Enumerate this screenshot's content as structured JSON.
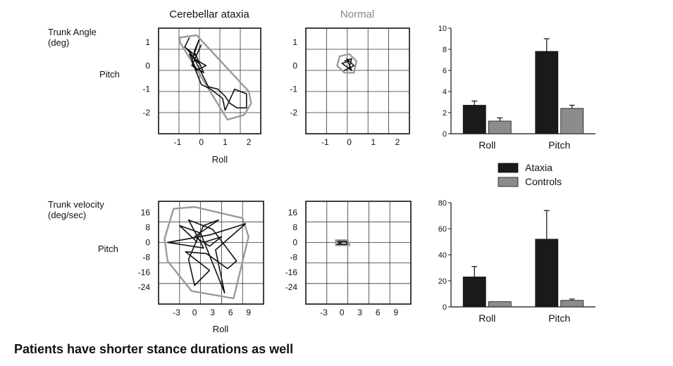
{
  "caption": "Patients have shorter stance durations as well",
  "column_titles": {
    "ataxia": "Cerebellar ataxia",
    "normal": "Normal"
  },
  "colors": {
    "ataxia": "#1a1a1a",
    "controls": "#8c8c8c",
    "hull": "#9a9a9a",
    "trace": "#111111",
    "grid": "#333333"
  },
  "legend": {
    "placement": "right-middle",
    "items": [
      {
        "label": "Ataxia",
        "color": "#1a1a1a"
      },
      {
        "label": "Controls",
        "color": "#8c8c8c"
      }
    ]
  },
  "rows": [
    {
      "ylabel": "Trunk Angle\n(deg)",
      "axis_label_pitch": "Pitch",
      "axis_label_roll": "Roll"
    },
    {
      "ylabel": "Trunk velocity\n(deg/sec)",
      "axis_label_pitch": "Pitch",
      "axis_label_roll": "Roll"
    }
  ],
  "chart_data": [
    {
      "type": "scatter",
      "panel": "trunk-angle-ataxia",
      "xlabel": "Roll",
      "ylabel": "Pitch",
      "xlim": [
        -1.8,
        2.5
      ],
      "ylim": [
        -2.9,
        1.6
      ],
      "xticks": [
        -1,
        0,
        1,
        2
      ],
      "yticks": [
        1,
        0,
        -1,
        -2
      ],
      "grid": true,
      "hull": [
        [
          -0.9,
          1.2
        ],
        [
          -0.2,
          1.3
        ],
        [
          2.0,
          -1.1
        ],
        [
          2.1,
          -1.6
        ],
        [
          1.8,
          -2.1
        ],
        [
          1.1,
          -2.3
        ],
        [
          -0.9,
          1.0
        ]
      ],
      "trace": [
        [
          -0.5,
          1.2
        ],
        [
          -0.7,
          0.8
        ],
        [
          -0.2,
          0.4
        ],
        [
          -0.6,
          0.7
        ],
        [
          -0.1,
          0.1
        ],
        [
          -0.5,
          0.5
        ],
        [
          -0.2,
          -0.2
        ],
        [
          0.2,
          0.0
        ],
        [
          -0.3,
          0.3
        ],
        [
          0.3,
          -0.9
        ],
        [
          0.7,
          -1.0
        ],
        [
          1.0,
          -1.3
        ],
        [
          1.2,
          -1.6
        ],
        [
          1.5,
          -1.8
        ],
        [
          1.9,
          -1.8
        ],
        [
          1.9,
          -1.2
        ],
        [
          1.4,
          -1.0
        ],
        [
          1.0,
          -1.9
        ],
        [
          0.9,
          -1.4
        ],
        [
          0.4,
          -1.0
        ],
        [
          0.0,
          -0.8
        ],
        [
          -0.4,
          0.2
        ],
        [
          -0.1,
          1.1
        ],
        [
          -0.3,
          0.6
        ],
        [
          0.1,
          -0.3
        ],
        [
          -0.4,
          0.0
        ],
        [
          0.0,
          0.9
        ]
      ]
    },
    {
      "type": "scatter",
      "panel": "trunk-angle-normal",
      "xlabel": "Roll",
      "ylabel": "Pitch",
      "xlim": [
        -1.8,
        2.5
      ],
      "ylim": [
        -2.9,
        1.6
      ],
      "xticks": [
        -1,
        0,
        1,
        2
      ],
      "yticks": [
        1,
        0,
        -1,
        -2
      ],
      "grid": true,
      "hull": [
        [
          -0.4,
          0.4
        ],
        [
          0.0,
          0.5
        ],
        [
          0.3,
          0.2
        ],
        [
          0.2,
          -0.3
        ],
        [
          -0.2,
          -0.3
        ],
        [
          -0.5,
          0.0
        ]
      ],
      "trace": [
        [
          -0.2,
          0.2
        ],
        [
          0.1,
          0.3
        ],
        [
          0.0,
          -0.1
        ],
        [
          -0.2,
          -0.2
        ],
        [
          0.2,
          0.0
        ],
        [
          -0.1,
          0.3
        ],
        [
          0.1,
          -0.2
        ],
        [
          -0.3,
          0.1
        ],
        [
          0.0,
          0.2
        ]
      ]
    },
    {
      "type": "bar",
      "panel": "trunk-angle-summary",
      "categories": [
        "Roll",
        "Pitch"
      ],
      "series": [
        {
          "name": "Ataxia",
          "values": [
            2.7,
            7.8
          ],
          "errors": [
            0.4,
            1.2
          ]
        },
        {
          "name": "Controls",
          "values": [
            1.2,
            2.4
          ],
          "errors": [
            0.3,
            0.3
          ]
        }
      ],
      "ylim": [
        0,
        10
      ],
      "yticks": [
        0,
        2,
        4,
        6,
        8,
        10
      ]
    },
    {
      "type": "scatter",
      "panel": "trunk-velocity-ataxia",
      "xlabel": "Roll",
      "ylabel": "Pitch",
      "xlim": [
        -6,
        11.5
      ],
      "ylim": [
        -33,
        22
      ],
      "xticks": [
        -3,
        0,
        3,
        6,
        9
      ],
      "yticks": [
        16,
        8,
        0,
        -8,
        -16,
        -24
      ],
      "grid": true,
      "hull": [
        [
          -3.5,
          18
        ],
        [
          0.0,
          19
        ],
        [
          8.0,
          13
        ],
        [
          9.0,
          3
        ],
        [
          6.5,
          -30
        ],
        [
          -0.5,
          -26
        ],
        [
          -4.5,
          -10
        ],
        [
          -5.0,
          2
        ]
      ],
      "trace": [
        [
          0.5,
          0
        ],
        [
          -2.5,
          9
        ],
        [
          1.0,
          5
        ],
        [
          5.0,
          -27
        ],
        [
          3.5,
          -4
        ],
        [
          8.5,
          10
        ],
        [
          2.5,
          4
        ],
        [
          -4.5,
          0
        ],
        [
          1.5,
          -3
        ],
        [
          -1.0,
          12
        ],
        [
          3.0,
          7
        ],
        [
          7.0,
          -10
        ],
        [
          5.5,
          -14
        ],
        [
          2.0,
          -6
        ],
        [
          -1.5,
          -5
        ],
        [
          2.5,
          -15
        ],
        [
          0.0,
          -23
        ],
        [
          -1.0,
          -9
        ],
        [
          0.5,
          2
        ],
        [
          1.5,
          9
        ],
        [
          4.0,
          12
        ],
        [
          0.0,
          3
        ],
        [
          2.5,
          -2
        ],
        [
          4.5,
          3
        ],
        [
          1.5,
          0
        ]
      ]
    },
    {
      "type": "scatter",
      "panel": "trunk-velocity-normal",
      "xlabel": "Roll",
      "ylabel": "Pitch",
      "xlim": [
        -6,
        11.5
      ],
      "ylim": [
        -33,
        22
      ],
      "xticks": [
        -3,
        0,
        3,
        6,
        9
      ],
      "yticks": [
        16,
        8,
        0,
        -8,
        -16,
        -24
      ],
      "grid": true,
      "hull": [
        [
          -1.0,
          1.2
        ],
        [
          1.0,
          1.2
        ],
        [
          1.3,
          -1.5
        ],
        [
          -1.0,
          -1.5
        ]
      ],
      "trace": [
        [
          -0.8,
          0.5
        ],
        [
          0.8,
          0.5
        ],
        [
          0.8,
          -1.0
        ],
        [
          -0.8,
          -1.0
        ],
        [
          0.0,
          0.0
        ]
      ]
    },
    {
      "type": "bar",
      "panel": "trunk-velocity-summary",
      "categories": [
        "Roll",
        "Pitch"
      ],
      "series": [
        {
          "name": "Ataxia",
          "values": [
            23,
            52
          ],
          "errors": [
            8,
            22
          ]
        },
        {
          "name": "Controls",
          "values": [
            4,
            5
          ],
          "errors": [
            0,
            1
          ]
        }
      ],
      "ylim": [
        0,
        80
      ],
      "yticks": [
        0,
        20,
        40,
        60,
        80
      ]
    }
  ]
}
